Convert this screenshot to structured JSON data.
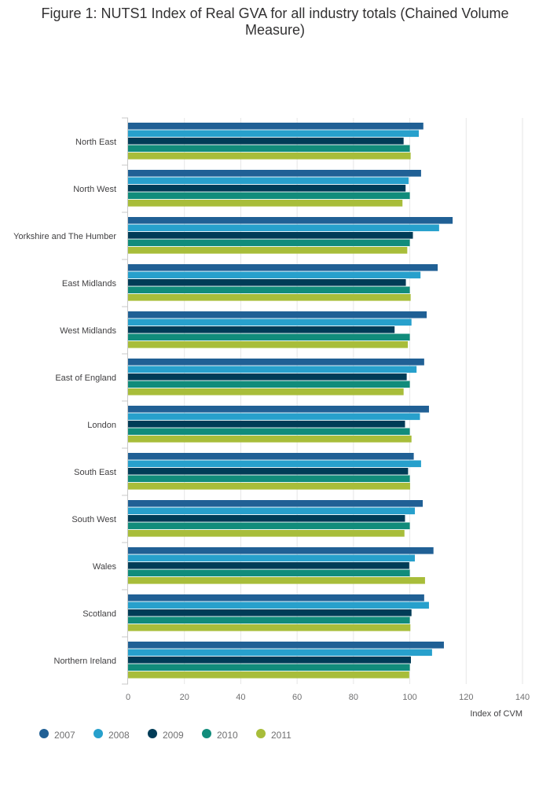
{
  "title": "Figure 1: NUTS1 Index of Real GVA for all industry totals (Chained Volume Measure)",
  "chart_data": {
    "type": "bar",
    "orientation": "horizontal",
    "title": "Figure 1: NUTS1 Index of Real GVA for all industry totals (Chained Volume Measure)",
    "xlabel": "Index of CVM",
    "ylabel": "",
    "xlim": [
      0,
      140
    ],
    "x_ticks": [
      0,
      20,
      40,
      60,
      80,
      100,
      120,
      140
    ],
    "grid": "vertical",
    "legend_position": "bottom-left",
    "categories": [
      "North East",
      "North West",
      "Yorkshire and The Humber",
      "East Midlands",
      "West Midlands",
      "East of England",
      "London",
      "South East",
      "South West",
      "Wales",
      "Scotland",
      "Northern Ireland"
    ],
    "series": [
      {
        "name": "2007",
        "color": "#206095",
        "values": [
          104.8,
          104.0,
          115.2,
          109.9,
          106.0,
          105.1,
          106.8,
          101.4,
          104.6,
          108.4,
          105.1,
          112.1
        ]
      },
      {
        "name": "2008",
        "color": "#27a0cc",
        "values": [
          103.2,
          99.6,
          110.4,
          103.8,
          100.6,
          102.4,
          103.6,
          104.0,
          101.8,
          101.8,
          106.8,
          107.9
        ]
      },
      {
        "name": "2009",
        "color": "#003c57",
        "values": [
          97.8,
          98.5,
          101.1,
          98.6,
          94.6,
          98.9,
          98.3,
          99.4,
          98.3,
          99.8,
          100.6,
          100.4
        ]
      },
      {
        "name": "2010",
        "color": "#118c7b",
        "values": [
          100,
          100,
          100,
          100,
          100,
          100,
          100,
          100,
          100,
          100,
          100,
          100
        ]
      },
      {
        "name": "2011",
        "color": "#a8bd3a",
        "values": [
          100.3,
          97.4,
          99.1,
          100.3,
          99.3,
          97.8,
          100.6,
          100.1,
          98.1,
          105.4,
          100.2,
          99.8
        ]
      }
    ]
  }
}
